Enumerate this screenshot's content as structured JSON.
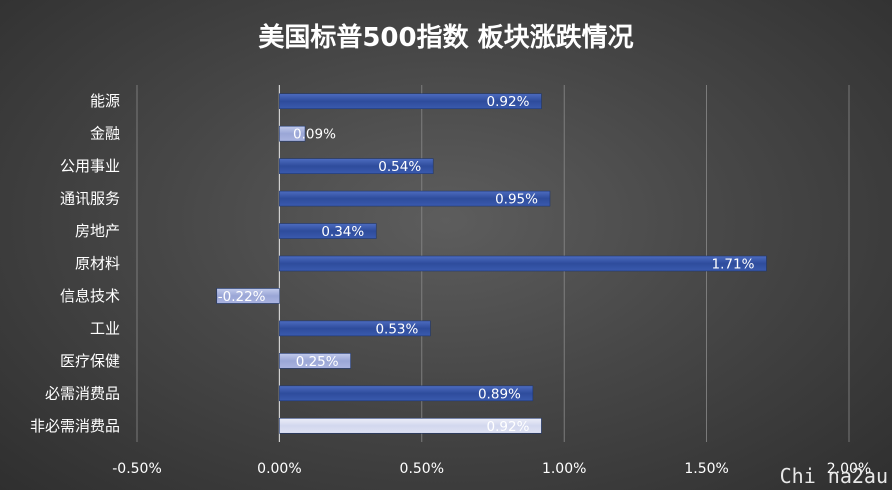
{
  "chart_data": {
    "type": "bar",
    "orientation": "horizontal",
    "title": "美国标普500指数 板块涨跌情况",
    "categories": [
      "能源",
      "金融",
      "公用事业",
      "通讯服务",
      "房地产",
      "原材料",
      "信息技术",
      "工业",
      "医疗保健",
      "必需消费品",
      "非必需消费品"
    ],
    "values": [
      0.92,
      0.09,
      0.54,
      0.95,
      0.34,
      1.71,
      -0.22,
      0.53,
      0.25,
      0.89,
      0.92
    ],
    "data_labels": [
      "0.92%",
      "0.09%",
      "0.54%",
      "0.95%",
      "0.34%",
      "1.71%",
      "-0.22%",
      "0.53%",
      "0.25%",
      "0.89%",
      "0.92%"
    ],
    "value_unit": "%",
    "xlim": [
      -0.5,
      2.0
    ],
    "x_ticks": [
      -0.5,
      0.0,
      0.5,
      1.0,
      1.5,
      2.0
    ],
    "x_tick_labels": [
      "-0.50%",
      "0.00%",
      "0.50%",
      "1.00%",
      "1.50%",
      "2.00%"
    ],
    "grid": "vertical",
    "legend": "none",
    "colors": {
      "positive_bar": "#3a5aa8",
      "light_bar": "#aab4dc",
      "pale_bar": "#d8dcf0",
      "grid": "#8a8a8a",
      "text": "#ffffff"
    },
    "bar_styles": [
      "dark",
      "light",
      "dark",
      "dark",
      "dark",
      "dark",
      "light",
      "dark",
      "light",
      "dark",
      "pale"
    ]
  },
  "watermark": "Chi na2au"
}
